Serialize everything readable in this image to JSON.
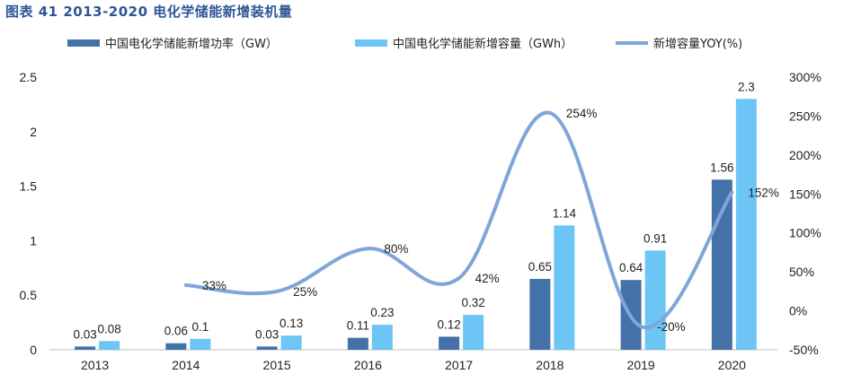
{
  "title": "图表 41 2013-2020 电化学储能新增装机量",
  "chart_data": {
    "type": "bar",
    "categories": [
      "2013",
      "2014",
      "2015",
      "2016",
      "2017",
      "2018",
      "2019",
      "2020"
    ],
    "series": [
      {
        "name": "中国电化学储能新增功率（GW）",
        "type": "bar",
        "axis": "left",
        "color": "#4472a8",
        "values": [
          0.03,
          0.06,
          0.03,
          0.11,
          0.12,
          0.65,
          0.64,
          1.56
        ],
        "labels": [
          "0.03",
          "0.06",
          "0.03",
          "0.11",
          "0.12",
          "0.65",
          "0.64",
          "1.56"
        ]
      },
      {
        "name": "中国电化学储能新增容量（GWh）",
        "type": "bar",
        "axis": "left",
        "color": "#6cc5f5",
        "values": [
          0.08,
          0.1,
          0.13,
          0.23,
          0.32,
          1.14,
          0.91,
          2.3
        ],
        "labels": [
          "0.08",
          "0.1",
          "0.13",
          "0.23",
          "0.32",
          "1.14",
          "0.91",
          "2.3"
        ]
      },
      {
        "name": "新增容量YOY(%)",
        "type": "line",
        "axis": "right",
        "color": "#7fa6d9",
        "values": [
          null,
          33,
          25,
          80,
          42,
          254,
          -20,
          152
        ],
        "labels": [
          "",
          "33%",
          "25%",
          "80%",
          "42%",
          "254%",
          "-20%",
          "152%"
        ]
      }
    ],
    "y_left": {
      "ylim": [
        0,
        2.5
      ],
      "ticks": [
        "0",
        "0.5",
        "1",
        "1.5",
        "2",
        "2.5"
      ],
      "tick_values": [
        0,
        0.5,
        1,
        1.5,
        2,
        2.5
      ]
    },
    "y_right": {
      "ylim": [
        -50,
        300
      ],
      "ticks": [
        "-50%",
        "0%",
        "50%",
        "100%",
        "150%",
        "200%",
        "250%",
        "300%"
      ],
      "tick_values": [
        -50,
        0,
        50,
        100,
        150,
        200,
        250,
        300
      ]
    },
    "xlabel": "",
    "ylabel": "",
    "grid": false,
    "legend_position": "top"
  }
}
